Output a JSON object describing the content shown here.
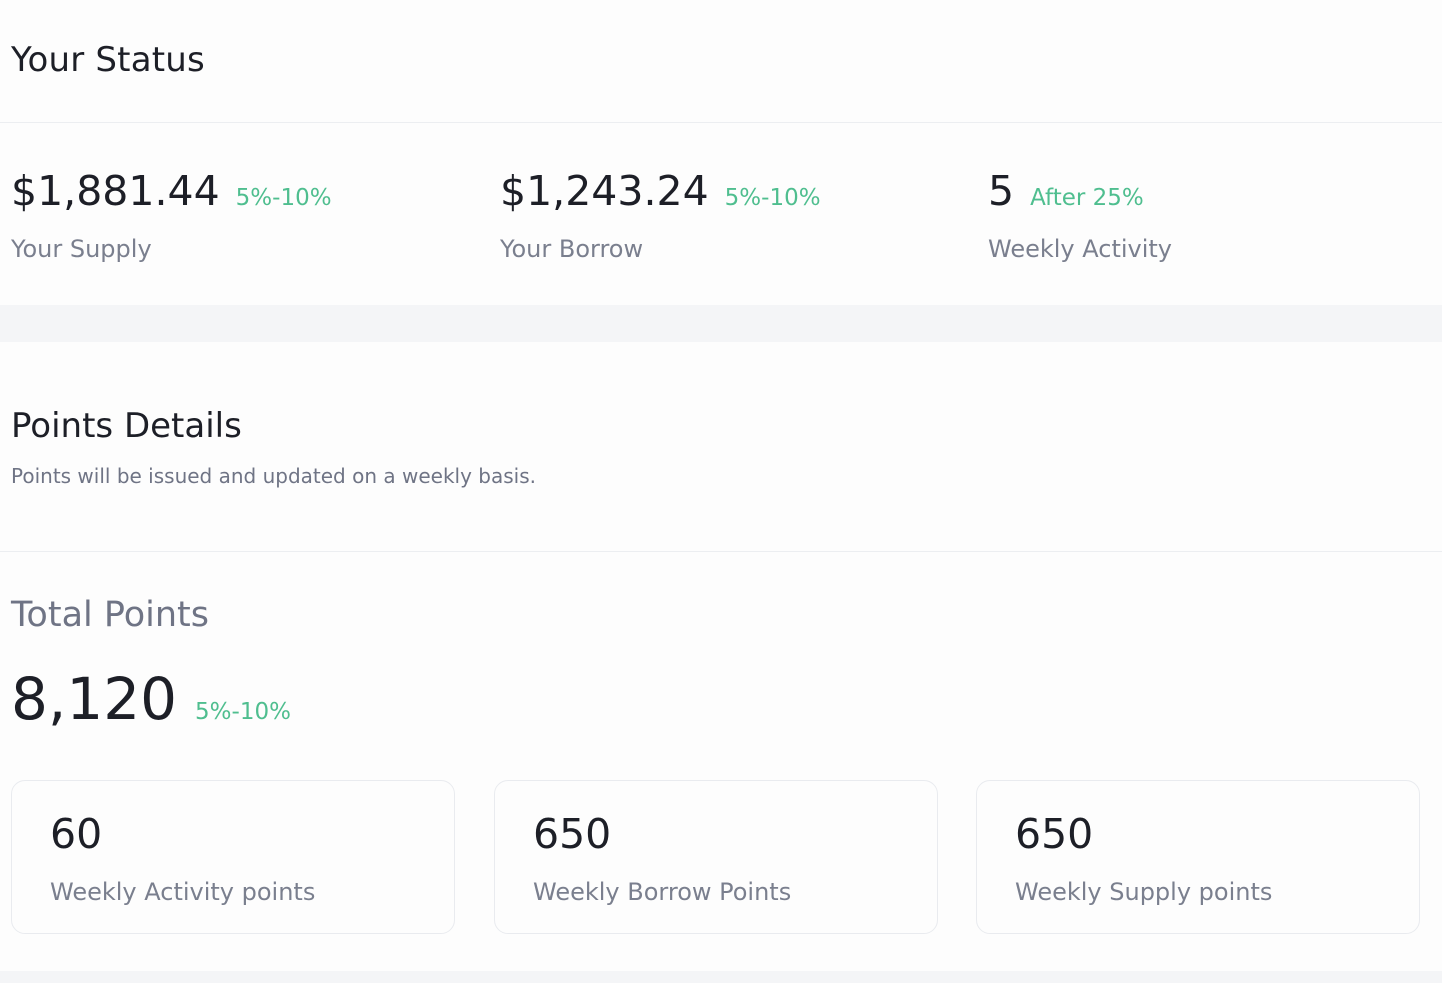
{
  "status": {
    "title": "Your Status",
    "stats": [
      {
        "value": "$1,881.44",
        "change": "5%-10%",
        "label": "Your Supply"
      },
      {
        "value": "$1,243.24",
        "change": "5%-10%",
        "label": "Your Borrow"
      },
      {
        "value": "5",
        "change": "After 25%",
        "label": "Weekly Activity"
      }
    ]
  },
  "points": {
    "title": "Points Details",
    "subtitle": "Points will be issued and updated on a weekly basis.",
    "total_label": "Total Points",
    "total_value": "8,120",
    "total_change": "5%-10%",
    "tiles": [
      {
        "value": "60",
        "label": "Weekly Activity points"
      },
      {
        "value": "650",
        "label": "Weekly Borrow Points"
      },
      {
        "value": "650",
        "label": "Weekly Supply points"
      }
    ]
  },
  "colors": {
    "positive": "#4fbe8f",
    "text_primary": "#1d1f27",
    "text_secondary": "#7a7f8e",
    "page_background": "#f4f5f7",
    "card_background": "#fdfdfd"
  }
}
